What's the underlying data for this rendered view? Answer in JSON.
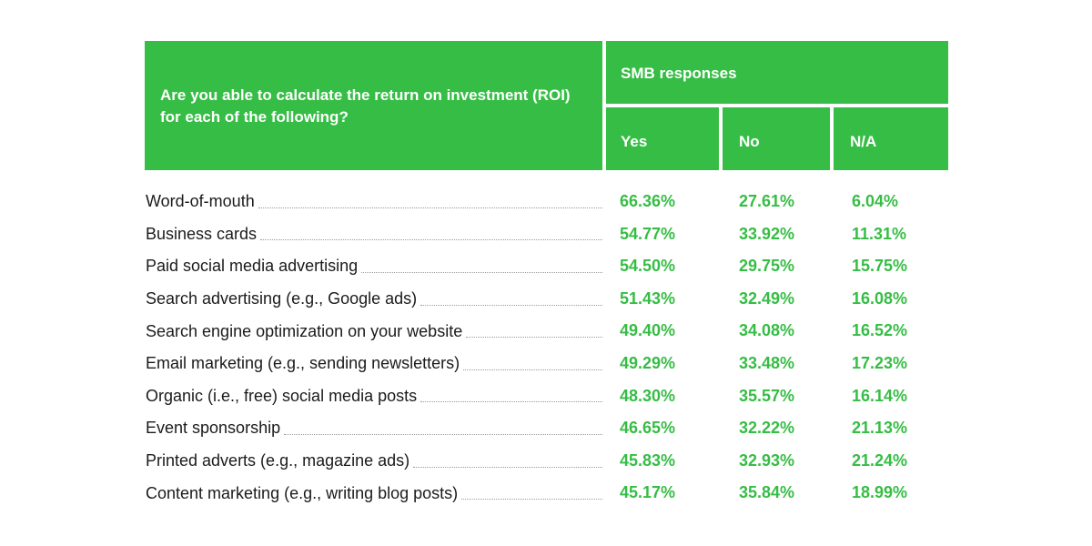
{
  "chart_data": {
    "type": "table",
    "header": {
      "question": "Are you able to calculate the return on investment (ROI) for each of the following?",
      "group": "SMB responses",
      "columns": [
        "Yes",
        "No",
        "N/A"
      ]
    },
    "rows": [
      {
        "label": "Word-of-mouth",
        "yes": "66.36%",
        "no": "27.61%",
        "na": "6.04%"
      },
      {
        "label": "Business cards",
        "yes": "54.77%",
        "no": "33.92%",
        "na": "11.31%"
      },
      {
        "label": "Paid social media advertising",
        "yes": "54.50%",
        "no": "29.75%",
        "na": "15.75%"
      },
      {
        "label": "Search advertising (e.g., Google ads)",
        "yes": "51.43%",
        "no": "32.49%",
        "na": "16.08%"
      },
      {
        "label": "Search engine optimization on your website",
        "yes": "49.40%",
        "no": "34.08%",
        "na": "16.52%"
      },
      {
        "label": "Email marketing (e.g., sending newsletters)",
        "yes": "49.29%",
        "no": "33.48%",
        "na": "17.23%"
      },
      {
        "label": "Organic (i.e., free) social media posts",
        "yes": "48.30%",
        "no": "35.57%",
        "na": "16.14%"
      },
      {
        "label": "Event sponsorship",
        "yes": "46.65%",
        "no": "32.22%",
        "na": "21.13%"
      },
      {
        "label": "Printed adverts (e.g., magazine ads)",
        "yes": "45.83%",
        "no": "32.93%",
        "na": "21.24%"
      },
      {
        "label": "Content marketing (e.g., writing blog posts)",
        "yes": "45.17%",
        "no": "35.84%",
        "na": "18.99%"
      }
    ]
  },
  "colors": {
    "accent": "#36bd45",
    "text": "#1b1b1b"
  }
}
